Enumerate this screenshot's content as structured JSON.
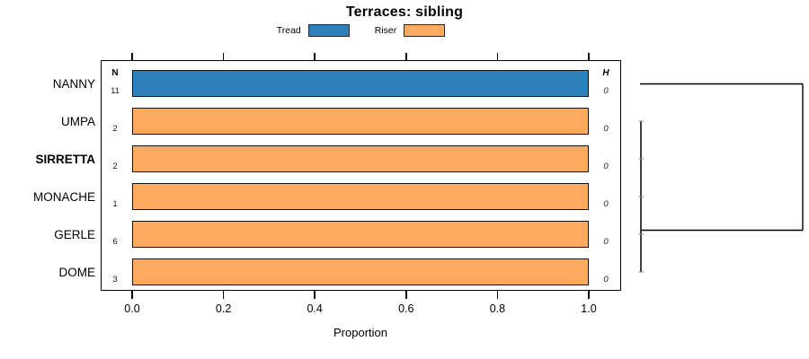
{
  "title": "Terraces: sibling",
  "x_axis_label": "Proportion",
  "columns": {
    "n_header": "N",
    "h_header": "H"
  },
  "legend": [
    {
      "label": "Tread",
      "color": "#2E80B9"
    },
    {
      "label": "Riser",
      "color": "#FBAA60"
    }
  ],
  "chart_data": {
    "type": "bar",
    "orientation": "horizontal",
    "title": "Terraces: sibling",
    "xlabel": "Proportion",
    "xlim": [
      0,
      1.0
    ],
    "x_ticks": [
      "0.0",
      "0.2",
      "0.4",
      "0.6",
      "0.8",
      "1.0"
    ],
    "x_tick_values": [
      0,
      0.2,
      0.4,
      0.6,
      0.8,
      1.0
    ],
    "grid": false,
    "legend_position": "top-center",
    "series_names": [
      "Tread",
      "Riser"
    ],
    "colors": {
      "Tread": "#2E80B9",
      "Riser": "#FBAA60"
    },
    "rows": [
      {
        "label": "NANNY",
        "bold": false,
        "series": "Tread",
        "proportion": 1.0,
        "n": "11",
        "h": "0"
      },
      {
        "label": "UMPA",
        "bold": false,
        "series": "Riser",
        "proportion": 1.0,
        "n": "2",
        "h": "0"
      },
      {
        "label": "SIRRETTA",
        "bold": true,
        "series": "Riser",
        "proportion": 1.0,
        "n": "2",
        "h": "0"
      },
      {
        "label": "MONACHE",
        "bold": false,
        "series": "Riser",
        "proportion": 1.0,
        "n": "1",
        "h": "0"
      },
      {
        "label": "GERLE",
        "bold": false,
        "series": "Riser",
        "proportion": 1.0,
        "n": "6",
        "h": "0"
      },
      {
        "label": "DOME",
        "bold": false,
        "series": "Riser",
        "proportion": 1.0,
        "n": "3",
        "h": "0"
      }
    ],
    "dendrogram": {
      "description": "right-side cluster tree: UMPA, SIRRETTA, MONACHE, GERLE, DOME join at height 0; root joins NANNY",
      "cluster_leaves": [
        "UMPA",
        "SIRRETTA",
        "MONACHE",
        "GERLE",
        "DOME"
      ],
      "root_pair": [
        "NANNY",
        "cluster"
      ],
      "merge_heights": [
        0,
        0,
        0,
        0
      ]
    }
  }
}
